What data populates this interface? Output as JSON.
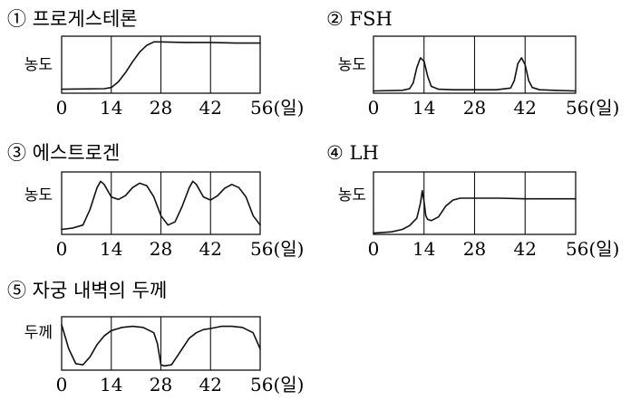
{
  "chart_data": [
    {
      "id": "progesterone",
      "type": "line",
      "title": "① 프로게스테론",
      "ylabel": "농도",
      "xunit": "(일)",
      "xlim": [
        0,
        56
      ],
      "ylim": [
        0,
        1
      ],
      "x_ticks": [
        "0",
        "14",
        "28",
        "42",
        "56"
      ],
      "grid_lines": [
        14,
        28,
        42
      ],
      "series": [
        {
          "x": [
            0,
            12,
            14,
            16,
            18,
            20,
            22,
            24,
            26,
            28,
            35,
            42,
            49,
            56
          ],
          "y": [
            0.07,
            0.08,
            0.1,
            0.2,
            0.36,
            0.55,
            0.72,
            0.84,
            0.9,
            0.9,
            0.89,
            0.89,
            0.88,
            0.88
          ]
        }
      ]
    },
    {
      "id": "fsh",
      "type": "line",
      "title": "② FSH",
      "ylabel": "농도",
      "xunit": "(일)",
      "xlim": [
        0,
        56
      ],
      "ylim": [
        0,
        1
      ],
      "x_ticks": [
        "0",
        "14",
        "28",
        "42",
        "56"
      ],
      "grid_lines": [
        14,
        28,
        42
      ],
      "series": [
        {
          "x": [
            0,
            8,
            10,
            11,
            12,
            13,
            14,
            15,
            16,
            18,
            22,
            28,
            34,
            38,
            39,
            40,
            41,
            42,
            43,
            44,
            46,
            50,
            56
          ],
          "y": [
            0.04,
            0.05,
            0.08,
            0.18,
            0.45,
            0.62,
            0.56,
            0.3,
            0.12,
            0.07,
            0.06,
            0.06,
            0.06,
            0.09,
            0.22,
            0.52,
            0.62,
            0.5,
            0.22,
            0.1,
            0.06,
            0.05,
            0.04
          ]
        }
      ]
    },
    {
      "id": "estrogen",
      "type": "line",
      "title": "③ 에스트로겐",
      "ylabel": "농도",
      "xunit": "(일)",
      "xlim": [
        0,
        56
      ],
      "ylim": [
        0,
        1
      ],
      "x_ticks": [
        "0",
        "14",
        "28",
        "42",
        "56"
      ],
      "grid_lines": [
        14,
        28,
        42
      ],
      "series": [
        {
          "x": [
            0,
            3,
            6,
            8,
            10,
            11,
            12,
            14,
            16,
            18,
            20,
            22,
            24,
            26,
            28,
            30,
            32,
            34,
            36,
            37,
            38,
            40,
            42,
            44,
            46,
            48,
            50,
            52,
            54,
            56
          ],
          "y": [
            0.08,
            0.1,
            0.15,
            0.4,
            0.75,
            0.85,
            0.8,
            0.6,
            0.56,
            0.62,
            0.75,
            0.82,
            0.78,
            0.6,
            0.3,
            0.15,
            0.2,
            0.45,
            0.75,
            0.85,
            0.8,
            0.6,
            0.55,
            0.62,
            0.74,
            0.8,
            0.75,
            0.6,
            0.3,
            0.15
          ]
        }
      ]
    },
    {
      "id": "lh",
      "type": "line",
      "title": "④ LH",
      "ylabel": "농도",
      "xunit": "(일)",
      "xlim": [
        0,
        56
      ],
      "ylim": [
        0,
        1
      ],
      "x_ticks": [
        "0",
        "14",
        "28",
        "42",
        "56"
      ],
      "grid_lines": [
        14,
        28,
        42
      ],
      "series": [
        {
          "x": [
            0,
            5,
            8,
            10,
            12,
            13,
            13.5,
            14,
            14.5,
            15,
            16,
            18,
            20,
            22,
            24,
            26,
            28,
            35,
            42,
            49,
            56
          ],
          "y": [
            0.02,
            0.04,
            0.08,
            0.14,
            0.26,
            0.5,
            0.7,
            0.52,
            0.3,
            0.24,
            0.22,
            0.28,
            0.45,
            0.55,
            0.58,
            0.58,
            0.58,
            0.58,
            0.57,
            0.57,
            0.57
          ]
        }
      ]
    },
    {
      "id": "endometrium",
      "type": "line",
      "title": "⑤ 자궁 내벽의 두께",
      "ylabel": "두께",
      "xunit": "(일)",
      "xlim": [
        0,
        56
      ],
      "ylim": [
        0,
        1
      ],
      "x_ticks": [
        "0",
        "14",
        "28",
        "42",
        "56"
      ],
      "grid_lines": [
        14,
        28,
        42
      ],
      "series": [
        {
          "x": [
            0,
            2,
            4,
            6,
            8,
            10,
            12,
            14,
            17,
            20,
            23,
            26,
            27,
            28,
            29,
            31,
            34,
            36,
            38,
            40,
            42,
            45,
            48,
            51,
            54,
            56
          ],
          "y": [
            0.85,
            0.4,
            0.12,
            0.1,
            0.25,
            0.48,
            0.64,
            0.74,
            0.8,
            0.82,
            0.8,
            0.7,
            0.5,
            0.1,
            0.08,
            0.1,
            0.4,
            0.6,
            0.7,
            0.76,
            0.78,
            0.82,
            0.82,
            0.8,
            0.7,
            0.4
          ]
        }
      ]
    }
  ]
}
